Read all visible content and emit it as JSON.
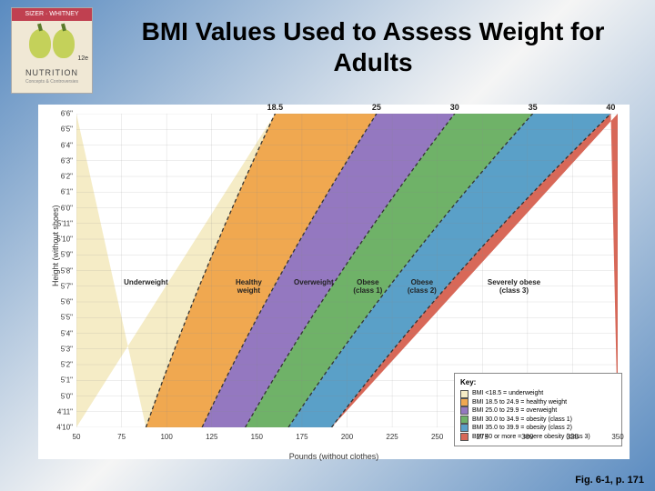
{
  "slide": {
    "title": "BMI Values Used to Assess Weight for Adults",
    "fig_caption": "Fig. 6-1, p. 171"
  },
  "book": {
    "publisher_banner": "SIZER · WHITNEY",
    "title": "NUTRITION",
    "subtitle": "Concepts & Controversies",
    "edition": "12e"
  },
  "chart": {
    "type": "area",
    "y_axis_label": "Height (without shoes)",
    "x_axis_label": "Pounds (without clothes)",
    "background_color": "#ffffff",
    "grid_color": "#888888",
    "xlim": [
      50,
      350
    ],
    "ylim_in": [
      58,
      78
    ],
    "x_ticks": [
      50,
      75,
      100,
      125,
      150,
      175,
      200,
      225,
      250,
      275,
      300,
      325,
      350
    ],
    "y_ticks": [
      "4'10\"",
      "4'11\"",
      "5'0\"",
      "5'1\"",
      "5'2\"",
      "5'3\"",
      "5'4\"",
      "5'5\"",
      "5'6\"",
      "5'7\"",
      "5'8\"",
      "5'9\"",
      "5'10\"",
      "5'11\"",
      "6'0\"",
      "6'1\"",
      "6'2\"",
      "6'3\"",
      "6'4\"",
      "6'5\"",
      "6'6\""
    ],
    "bmi_boundaries": [
      18.5,
      25,
      30,
      35,
      40
    ],
    "zones": [
      {
        "label": "Underweight",
        "color": "#f5ecc6",
        "label_left_pct": 12
      },
      {
        "label": "Healthy\nweight",
        "color": "#f0a850",
        "label_left_pct": 31
      },
      {
        "label": "Overweight",
        "color": "#9478c0",
        "label_left_pct": 43
      },
      {
        "label": "Obese\n(class 1)",
        "color": "#6fb268",
        "label_left_pct": 53
      },
      {
        "label": "Obese\n(class 2)",
        "color": "#5aa0c8",
        "label_left_pct": 63
      },
      {
        "label": "Severely obese\n(class 3)",
        "color": "#d86858",
        "label_left_pct": 80
      }
    ],
    "boundary_line_dash": "4,3",
    "boundary_line_color": "#333333",
    "tick_fontsize": 8,
    "label_fontsize": 9
  },
  "legend": {
    "title": "Key:",
    "items": [
      {
        "color": "#f5ecc6",
        "text": "BMI <18.5 = underweight"
      },
      {
        "color": "#f0a850",
        "text": "BMI 18.5 to 24.9 = healthy weight"
      },
      {
        "color": "#9478c0",
        "text": "BMI 25.0 to 29.9 = overweight"
      },
      {
        "color": "#6fb268",
        "text": "BMI 30.0 to 34.9 = obesity (class 1)"
      },
      {
        "color": "#5aa0c8",
        "text": "BMI 35.0 to 39.9 = obesity (class 2)"
      },
      {
        "color": "#d86858",
        "text": "BMI 40 or more = severe obesity (class 3)"
      }
    ]
  }
}
